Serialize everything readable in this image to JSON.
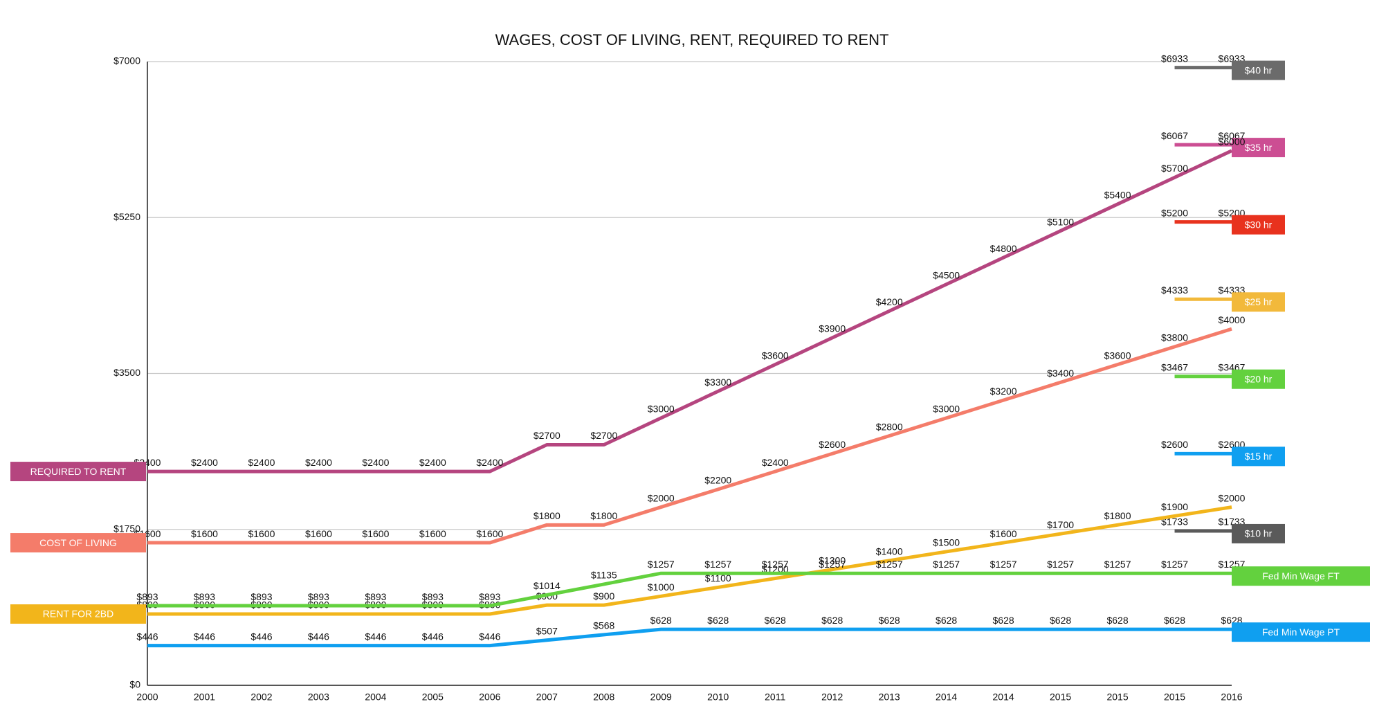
{
  "chart_data": {
    "type": "line",
    "title": "WAGES, COST OF LIVING, RENT, REQUIRED TO RENT",
    "categories": [
      "2000",
      "2001",
      "2002",
      "2003",
      "2004",
      "2005",
      "2006",
      "2007",
      "2008",
      "2009",
      "2010",
      "2011",
      "2012",
      "2013",
      "2014",
      "2014",
      "2015",
      "2015",
      "2015",
      "2016"
    ],
    "ylim": [
      0,
      7000
    ],
    "yticks": [
      {
        "value": 0,
        "label": "$0"
      },
      {
        "value": 1750,
        "label": "$1750"
      },
      {
        "value": 3500,
        "label": "$3500"
      },
      {
        "value": 5250,
        "label": "$5250"
      },
      {
        "value": 7000,
        "label": "$7000"
      }
    ],
    "grid": true,
    "series": [
      {
        "name": "$40 hr",
        "color": "#6b6b6b",
        "legend": "right",
        "values": [
          null,
          null,
          null,
          null,
          null,
          null,
          null,
          null,
          null,
          null,
          null,
          null,
          null,
          null,
          null,
          null,
          null,
          null,
          6933,
          6933
        ],
        "value_labels": [
          null,
          null,
          null,
          null,
          null,
          null,
          null,
          null,
          null,
          null,
          null,
          null,
          null,
          null,
          null,
          null,
          null,
          null,
          "$6933",
          "$6933"
        ]
      },
      {
        "name": "$35 hr",
        "color": "#cc4e93",
        "legend": "right",
        "values": [
          null,
          null,
          null,
          null,
          null,
          null,
          null,
          null,
          null,
          null,
          null,
          null,
          null,
          null,
          null,
          null,
          null,
          null,
          6067,
          6067
        ],
        "value_labels": [
          null,
          null,
          null,
          null,
          null,
          null,
          null,
          null,
          null,
          null,
          null,
          null,
          null,
          null,
          null,
          null,
          null,
          null,
          "$6067",
          "$6067"
        ]
      },
      {
        "name": "$30 hr",
        "color": "#e8321e",
        "legend": "right",
        "values": [
          null,
          null,
          null,
          null,
          null,
          null,
          null,
          null,
          null,
          null,
          null,
          null,
          null,
          null,
          null,
          null,
          null,
          null,
          5200,
          5200
        ],
        "value_labels": [
          null,
          null,
          null,
          null,
          null,
          null,
          null,
          null,
          null,
          null,
          null,
          null,
          null,
          null,
          null,
          null,
          null,
          null,
          "$5200",
          "$5200"
        ]
      },
      {
        "name": "$25 hr",
        "color": "#f2b93b",
        "legend": "right",
        "values": [
          null,
          null,
          null,
          null,
          null,
          null,
          null,
          null,
          null,
          null,
          null,
          null,
          null,
          null,
          null,
          null,
          null,
          null,
          4333,
          4333
        ],
        "value_labels": [
          null,
          null,
          null,
          null,
          null,
          null,
          null,
          null,
          null,
          null,
          null,
          null,
          null,
          null,
          null,
          null,
          null,
          null,
          "$4333",
          "$4333"
        ]
      },
      {
        "name": "$20 hr",
        "color": "#63d13e",
        "legend": "right",
        "values": [
          null,
          null,
          null,
          null,
          null,
          null,
          null,
          null,
          null,
          null,
          null,
          null,
          null,
          null,
          null,
          null,
          null,
          null,
          3467,
          3467
        ],
        "value_labels": [
          null,
          null,
          null,
          null,
          null,
          null,
          null,
          null,
          null,
          null,
          null,
          null,
          null,
          null,
          null,
          null,
          null,
          null,
          "$3467",
          "$3467"
        ]
      },
      {
        "name": "$15 hr",
        "color": "#0f9ff0",
        "legend": "right",
        "values": [
          null,
          null,
          null,
          null,
          null,
          null,
          null,
          null,
          null,
          null,
          null,
          null,
          null,
          null,
          null,
          null,
          null,
          null,
          2600,
          2600
        ],
        "value_labels": [
          null,
          null,
          null,
          null,
          null,
          null,
          null,
          null,
          null,
          null,
          null,
          null,
          null,
          null,
          null,
          null,
          null,
          null,
          "$2600",
          "$2600"
        ]
      },
      {
        "name": "$10 hr",
        "color": "#5a5a5a",
        "legend": "right",
        "values": [
          null,
          null,
          null,
          null,
          null,
          null,
          null,
          null,
          null,
          null,
          null,
          null,
          null,
          null,
          null,
          null,
          null,
          null,
          1733,
          1733
        ],
        "value_labels": [
          null,
          null,
          null,
          null,
          null,
          null,
          null,
          null,
          null,
          null,
          null,
          null,
          null,
          null,
          null,
          null,
          null,
          null,
          "$1733",
          "$1733"
        ]
      },
      {
        "name": "REQUIRED TO RENT",
        "color": "#b5457f",
        "legend": "left",
        "values": [
          2400,
          2400,
          2400,
          2400,
          2400,
          2400,
          2400,
          2700,
          2700,
          3000,
          3300,
          3600,
          3900,
          4200,
          4500,
          4800,
          5100,
          5400,
          5700,
          6000
        ],
        "value_labels": [
          "$2400",
          "$2400",
          "$2400",
          "$2400",
          "$2400",
          "$2400",
          "$2400",
          "$2700",
          "$2700",
          "$3000",
          "$3300",
          "$3600",
          "$3900",
          "$4200",
          "$4500",
          "$4800",
          "$5100",
          "$5400",
          "$5700",
          "$6000"
        ]
      },
      {
        "name": "COST OF LIVING",
        "color": "#f47c6a",
        "legend": "left",
        "values": [
          1600,
          1600,
          1600,
          1600,
          1600,
          1600,
          1600,
          1800,
          1800,
          2000,
          2200,
          2400,
          2600,
          2800,
          3000,
          3200,
          3400,
          3600,
          3800,
          4000
        ],
        "value_labels": [
          "$1600",
          "$1600",
          "$1600",
          "$1600",
          "$1600",
          "$1600",
          "$1600",
          "$1800",
          "$1800",
          "$2000",
          "$2200",
          "$2400",
          "$2600",
          "$2800",
          "$3000",
          "$3200",
          "$3400",
          "$3600",
          "$3800",
          "$4000"
        ]
      },
      {
        "name": "RENT FOR 2BD",
        "color": "#f2b51b",
        "legend": "left",
        "values": [
          800,
          800,
          800,
          800,
          800,
          800,
          800,
          900,
          900,
          1000,
          1100,
          1200,
          1300,
          1400,
          1500,
          1600,
          1700,
          1800,
          1900,
          2000
        ],
        "value_labels": [
          "$800",
          "$800",
          "$800",
          "$800",
          "$800",
          "$800",
          "$800",
          "$900",
          "$900",
          "$1000",
          "$1100",
          "$1200",
          "$1300",
          "$1400",
          "$1500",
          "$1600",
          "$1700",
          "$1800",
          "$1900",
          "$2000"
        ]
      },
      {
        "name": "Fed Min Wage FT",
        "color": "#63d13e",
        "legend": "right",
        "values": [
          893,
          893,
          893,
          893,
          893,
          893,
          893,
          1014,
          1135,
          1257,
          1257,
          1257,
          1257,
          1257,
          1257,
          1257,
          1257,
          1257,
          1257,
          1257
        ],
        "value_labels": [
          "$893",
          "$893",
          "$893",
          "$893",
          "$893",
          "$893",
          "$893",
          "$1014",
          "$1135",
          "$1257",
          "$1257",
          "$1257",
          "$1257",
          "$1257",
          "$1257",
          "$1257",
          "$1257",
          "$1257",
          "$1257",
          "$1257"
        ]
      },
      {
        "name": "Fed Min Wage PT",
        "color": "#0f9ff0",
        "legend": "right",
        "values": [
          446,
          446,
          446,
          446,
          446,
          446,
          446,
          507,
          568,
          628,
          628,
          628,
          628,
          628,
          628,
          628,
          628,
          628,
          628,
          628
        ],
        "value_labels": [
          "$446",
          "$446",
          "$446",
          "$446",
          "$446",
          "$446",
          "$446",
          "$507",
          "$568",
          "$628",
          "$628",
          "$628",
          "$628",
          "$628",
          "$628",
          "$628",
          "$628",
          "$628",
          "$628",
          "$628"
        ]
      }
    ]
  }
}
